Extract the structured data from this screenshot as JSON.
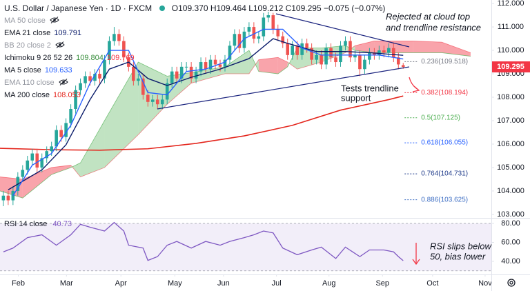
{
  "chart_data": [
    {
      "type": "candlestick",
      "title": "U.S. Dollar / Japanese Yen · 1D · FXCM",
      "ohlc": "O109.370 H109.464 L109.212 C109.295 −0.075 (−0.07%)",
      "indicators": [
        {
          "label": "MA 50 close",
          "hidden": true
        },
        {
          "label": "EMA 21 close",
          "values": [
            "109.791"
          ],
          "colors": [
            "#0c1d6b"
          ],
          "line": {
            "x": [
              1,
              8,
              13,
              18,
              22,
              26,
              30,
              34,
              39,
              45,
              51,
              56,
              59,
              65,
              71,
              76,
              83
            ],
            "values": [
              104.05,
              104.9,
              105.97,
              107.9,
              109.2,
              109.5,
              108.8,
              108.5,
              108.85,
              109.2,
              109.65,
              110.5,
              110.3,
              109.95,
              109.95,
              109.9,
              109.791
            ]
          }
        },
        {
          "label": "BB 20 close 2",
          "hidden": true
        },
        {
          "label": "Ichimoku 9 26 52 26",
          "values": [
            "109.804",
            "109.769"
          ],
          "colors": [
            "#388e3c",
            "#f23645"
          ]
        },
        {
          "label": "MA 5 close",
          "values": [
            "109.633"
          ],
          "colors": [
            "#2962ff"
          ],
          "line": {
            "x": [
              2,
              6,
              10,
              14,
              18,
              22,
              26,
              30,
              34,
              38,
              42,
              46,
              50,
              54,
              58,
              62,
              66,
              70,
              74,
              78,
              83
            ],
            "values": [
              103.8,
              105.1,
              105.6,
              106.8,
              108.6,
              110.0,
              110.0,
              108.2,
              108.1,
              109.1,
              109.2,
              109.5,
              110.5,
              110.9,
              110.9,
              110.1,
              109.8,
              109.8,
              109.8,
              109.8,
              109.633
            ]
          }
        },
        {
          "label": "EMA 110 close",
          "hidden": true
        },
        {
          "label": "MA 200 close",
          "values": [
            "108.053"
          ],
          "colors": [
            "#e4261d"
          ],
          "line": {
            "x": [
              -0.7,
              10,
              20,
              30,
              40,
              50,
              60,
              70,
              80,
              83
            ],
            "values": [
              105.82,
              105.76,
              105.74,
              105.8,
              106.03,
              106.35,
              106.8,
              107.45,
              107.9,
              108.053
            ]
          }
        }
      ],
      "candles": {
        "open": [
          103.6,
          103.8,
          103.6,
          104.0,
          104.6,
          104.9,
          105.3,
          105.6,
          105.0,
          105.4,
          105.7,
          105.9,
          106.6,
          106.3,
          106.9,
          107.5,
          108.3,
          108.6,
          108.9,
          108.7,
          109.0,
          108.8,
          109.6,
          110.4,
          110.7,
          110.4,
          109.7,
          109.3,
          108.7,
          108.8,
          108.1,
          107.8,
          107.9,
          107.7,
          107.9,
          108.6,
          109.1,
          108.8,
          109.3,
          109.3,
          108.8,
          109.1,
          109.5,
          109.2,
          109.6,
          109.4,
          109.3,
          109.6,
          110.2,
          110.7,
          110.1,
          110.8,
          111.0,
          110.5,
          110.6,
          111.4,
          111.5,
          110.9,
          110.6,
          110.3,
          109.8,
          110.2,
          109.8,
          110.3,
          110.1,
          109.6,
          109.8,
          109.4,
          110.1,
          109.7,
          109.5,
          110.2,
          110.4,
          109.7,
          109.8,
          109.2,
          109.6,
          109.9,
          109.8,
          110.0,
          109.9,
          110.1,
          109.7,
          109.37
        ],
        "high": [
          104.0,
          104.0,
          104.2,
          104.8,
          105.1,
          105.5,
          105.8,
          105.8,
          105.6,
          105.9,
          106.1,
          106.8,
          106.8,
          107.1,
          107.7,
          108.5,
          108.8,
          109.1,
          109.1,
          109.2,
          109.2,
          109.8,
          110.6,
          111.0,
          110.9,
          110.6,
          109.9,
          109.5,
          109.0,
          109.0,
          108.3,
          108.1,
          108.1,
          108.1,
          108.8,
          109.3,
          109.3,
          109.5,
          109.5,
          109.5,
          109.3,
          109.7,
          109.7,
          109.8,
          109.8,
          109.6,
          109.8,
          110.4,
          110.9,
          110.9,
          111.0,
          111.2,
          111.2,
          110.8,
          111.6,
          111.65,
          111.6,
          111.1,
          110.8,
          110.5,
          110.4,
          110.4,
          110.5,
          110.5,
          110.3,
          110.0,
          110.0,
          110.3,
          110.3,
          109.9,
          110.4,
          110.6,
          110.6,
          110.0,
          110.0,
          109.8,
          110.1,
          110.1,
          110.2,
          110.2,
          110.3,
          110.3,
          109.9,
          109.464
        ],
        "low": [
          103.35,
          103.4,
          103.4,
          103.8,
          104.4,
          104.7,
          105.1,
          104.8,
          104.8,
          105.2,
          105.5,
          105.7,
          106.1,
          106.1,
          106.7,
          107.3,
          108.1,
          108.4,
          108.5,
          108.5,
          108.6,
          108.6,
          109.4,
          110.2,
          110.2,
          109.5,
          109.1,
          108.5,
          108.5,
          107.9,
          107.6,
          107.6,
          107.5,
          107.5,
          107.7,
          108.4,
          108.6,
          108.6,
          109.1,
          108.6,
          108.6,
          108.9,
          109.0,
          109.0,
          109.2,
          109.1,
          109.1,
          109.4,
          110.0,
          109.9,
          109.9,
          110.6,
          110.3,
          110.3,
          110.4,
          111.2,
          110.7,
          110.4,
          110.1,
          109.6,
          109.6,
          109.6,
          109.6,
          109.9,
          109.4,
          109.4,
          109.2,
          109.2,
          109.5,
          109.3,
          109.3,
          110.0,
          109.5,
          109.5,
          108.9,
          109.0,
          109.4,
          109.6,
          109.6,
          109.7,
          109.7,
          109.5,
          109.2,
          109.212
        ],
        "close": [
          103.8,
          103.6,
          104.0,
          104.6,
          104.9,
          105.3,
          105.6,
          105.0,
          105.4,
          105.7,
          105.9,
          106.6,
          106.3,
          106.9,
          107.5,
          108.3,
          108.6,
          108.9,
          108.7,
          109.0,
          108.8,
          109.6,
          110.4,
          110.7,
          110.4,
          109.7,
          109.3,
          108.7,
          108.8,
          108.1,
          107.8,
          107.9,
          107.7,
          107.9,
          108.6,
          109.1,
          108.8,
          109.3,
          109.3,
          108.8,
          109.1,
          109.5,
          109.2,
          109.6,
          109.4,
          109.3,
          109.6,
          110.2,
          110.7,
          110.1,
          110.8,
          111.0,
          110.5,
          110.6,
          111.4,
          111.5,
          110.9,
          110.6,
          110.3,
          109.8,
          110.2,
          109.8,
          110.3,
          110.1,
          109.6,
          109.8,
          109.4,
          110.1,
          109.7,
          109.5,
          110.2,
          110.4,
          109.7,
          109.8,
          109.2,
          109.6,
          109.9,
          109.8,
          110.0,
          109.9,
          110.1,
          109.7,
          109.4,
          109.295
        ]
      },
      "up_color": "#26a69a",
      "down_color": "#ef5350",
      "last_color": "#f23645",
      "cloud": {
        "x": [
          -0.7,
          4,
          10,
          14,
          16,
          21,
          28,
          34,
          39,
          46,
          51,
          53,
          57,
          59,
          61,
          66,
          71,
          73,
          77,
          85,
          91,
          97
        ],
        "span_a": [
          104.0,
          103.7,
          104.7,
          105.0,
          105.2,
          107.0,
          109.5,
          108.9,
          109.05,
          109.3,
          110.0,
          109.1,
          109.0,
          109.3,
          110.1,
          110.1,
          110.2,
          110.0,
          109.9,
          109.9,
          109.9,
          109.75
        ],
        "span_b": [
          104.6,
          104.5,
          105.0,
          105.1,
          104.6,
          105.0,
          106.4,
          107.7,
          108.6,
          109.0,
          109.0,
          109.6,
          109.7,
          109.5,
          109.2,
          109.5,
          109.9,
          110.2,
          110.4,
          110.4,
          110.35,
          109.9
        ],
        "up_color": "#4caf50",
        "down_color": "#f23645"
      },
      "fib": [
        {
          "value": 109.518,
          "label": "0.236(109.518)",
          "color": "#787b86"
        },
        {
          "value": 108.194,
          "label": "0.382(108.194)",
          "color": "#f23645"
        },
        {
          "value": 107.125,
          "label": "0.5(107.125)",
          "color": "#4caf50"
        },
        {
          "value": 106.055,
          "label": "0.618(106.055)",
          "color": "#2962ff"
        },
        {
          "value": 104.731,
          "label": "0.764(104.731)",
          "color": "#1e3a8a"
        },
        {
          "value": 103.625,
          "label": "0.886(103.625)",
          "color": "#3f6fc4"
        }
      ],
      "annotations": [
        "Rejected at cloud top",
        "and trendline resistance",
        "Tests trendline",
        "support"
      ],
      "xlim": [
        -0.7,
        101.3
      ],
      "xticks": [
        {
          "value": 3.1,
          "label": "Feb"
        },
        {
          "value": 13.1,
          "label": "Mar"
        },
        {
          "value": 24.4,
          "label": "Apr"
        },
        {
          "value": 35.6,
          "label": "May"
        },
        {
          "value": 45.7,
          "label": "Jun"
        },
        {
          "value": 56.7,
          "label": "Jul"
        },
        {
          "value": 67.6,
          "label": "Aug"
        },
        {
          "value": 78.7,
          "label": "Sep"
        },
        {
          "value": 89.1,
          "label": "Oct"
        },
        {
          "value": 100,
          "label": "Nov"
        }
      ],
      "ylim": [
        102.85,
        112.15
      ],
      "yticks": [
        {
          "value": 112,
          "label": "112.000"
        },
        {
          "value": 111,
          "label": "111.000"
        },
        {
          "value": 110,
          "label": "110.000"
        },
        {
          "value": 109,
          "label": "109.000"
        },
        {
          "value": 108,
          "label": "108.000"
        },
        {
          "value": 107,
          "label": "107.000"
        },
        {
          "value": 106,
          "label": "106.000"
        },
        {
          "value": 105,
          "label": "105.000"
        },
        {
          "value": 104,
          "label": "104.000"
        },
        {
          "value": 103,
          "label": "103.000"
        }
      ]
    },
    {
      "type": "line",
      "title": "RSI 14 close",
      "color": "#7e57c2",
      "x": [
        0,
        2,
        5,
        8,
        11,
        14,
        16,
        18,
        21,
        23,
        25,
        26,
        29,
        30,
        32,
        34,
        36,
        39,
        42,
        45,
        47,
        50,
        52,
        54,
        56,
        58,
        61,
        64,
        66,
        69,
        71,
        74,
        76,
        79,
        81,
        82,
        83
      ],
      "values": [
        50,
        54,
        65,
        68,
        57,
        68,
        79,
        76,
        72,
        81,
        72,
        57,
        54,
        41,
        45,
        57,
        61,
        54,
        61,
        57,
        61,
        65,
        68,
        72,
        70,
        54,
        47,
        52,
        55,
        43,
        55,
        45,
        52,
        52,
        50,
        45,
        40.73
      ],
      "band": [
        30,
        80
      ],
      "annotations": [
        "RSI slips below",
        "50, bias lower"
      ],
      "xlim": [
        -0.7,
        101.3
      ],
      "ylim": [
        26.2,
        85.8
      ],
      "yticks": [
        {
          "value": 80,
          "label": "80.00"
        },
        {
          "value": 60,
          "label": "60.00"
        },
        {
          "value": 40,
          "label": "40.00"
        }
      ]
    }
  ]
}
